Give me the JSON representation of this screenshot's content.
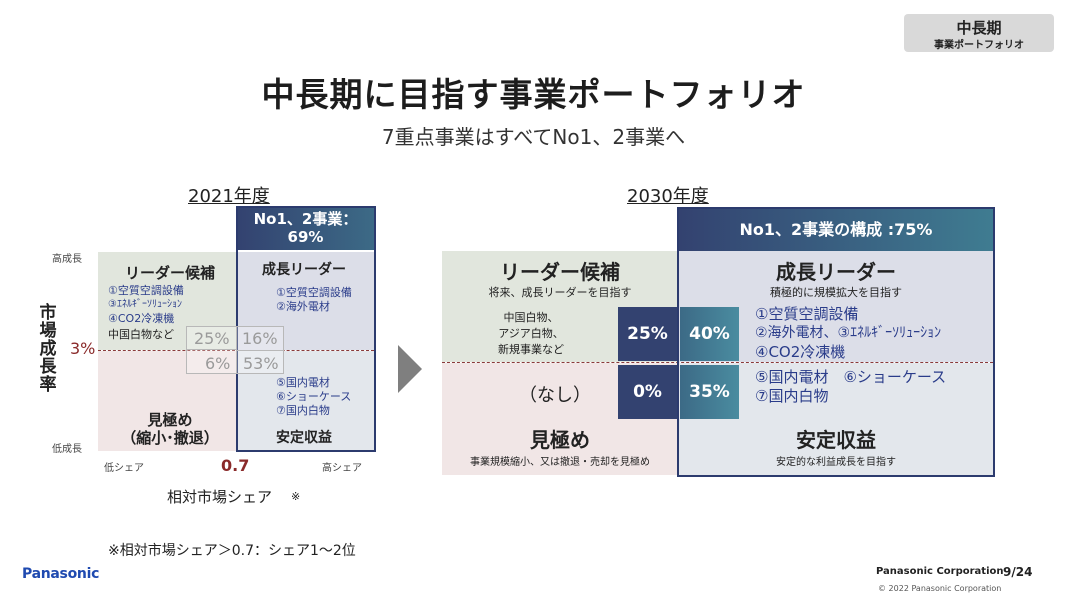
{
  "header": {
    "tag_title": "中長期",
    "tag_sub": "事業ポートフォリオ",
    "title": "中長期に目指す事業ポートフォリオ",
    "subtitle": "7重点事業はすべてNo1、2事業へ"
  },
  "left": {
    "year": "2021年度",
    "top_box": "No1、2事業：\n69%",
    "y_axis_label": "市場成長率",
    "y_high": "高成長",
    "y_low": "低成長",
    "y_split": "3%",
    "x_low": "低シェア",
    "x_high": "高シェア",
    "x_split": "0.7",
    "x_axis_label": "相対市場シェア",
    "x_axis_mark": "※",
    "q1_title": "リーダー候補",
    "q1_items": [
      "①空質空調設備",
      "③ｴﾈﾙｷﾞｰｿﾘｭｰｼｮﾝ",
      "④CO2冷凍機",
      "中国白物など"
    ],
    "q2_title": "成長リーダー",
    "q2_items": [
      "①空質空調設備",
      "②海外電材"
    ],
    "q3_title": "見極め\n（縮小･撤退）",
    "q4_items": [
      "⑤国内電材",
      "⑥ショーケース",
      "⑦国内白物"
    ],
    "q4_title": "安定収益",
    "pct": [
      "25%",
      "16%",
      "6%",
      "53%"
    ]
  },
  "right": {
    "year": "2030年度",
    "top_box": "No1、2事業の構成 :75%",
    "q1_title": "リーダー候補",
    "q1_sub": "将来、成長リーダーを目指す",
    "q1_items": "中国白物、\nアジア白物、\n新規事業など",
    "q2_title": "成長リーダー",
    "q2_sub": "積極的に規模拡大を目指す",
    "q2_items": [
      "①空質空調設備",
      "②海外電材、③ｴﾈﾙｷﾞｰｿﾘｭｰｼｮﾝ",
      "④CO2冷凍機"
    ],
    "q3_none": "（なし）",
    "q3_title": "見極め",
    "q3_sub": "事業規模縮小、又は撤退・売却を見極め",
    "q4_items": [
      "⑤国内電材　⑥ショーケース",
      "⑦国内白物"
    ],
    "q4_title": "安定収益",
    "q4_sub": "安定的な利益成長を目指す",
    "pct": [
      "25%",
      "40%",
      "0%",
      "35%"
    ]
  },
  "footer": {
    "note": "※相対市場シェア＞0.7：シェア1～2位",
    "logo": "Panasonic",
    "corp": "Panasonic Corporation",
    "page": "9/24",
    "copyright": "© 2022 Panasonic Corporation"
  },
  "colors": {
    "navy": "#334270",
    "teal": "#3f7c91",
    "frame": "#2c3b6e",
    "item_blue": "#2a3c8a",
    "split_red": "#8a3a3a"
  }
}
